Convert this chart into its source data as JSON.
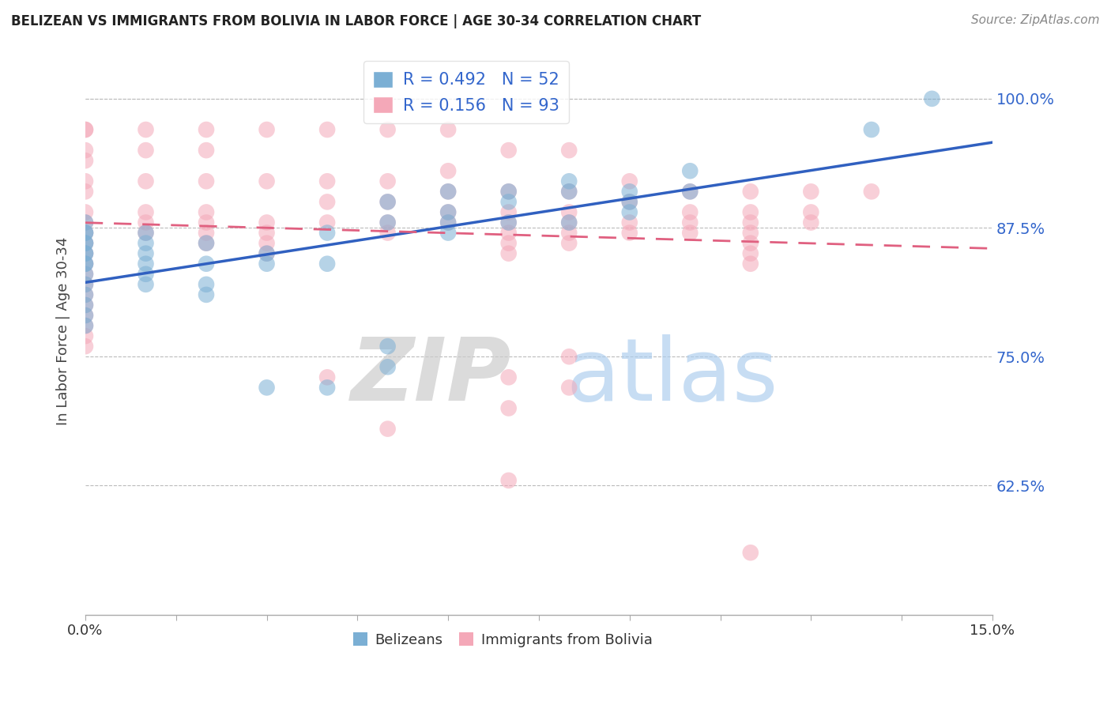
{
  "title": "BELIZEAN VS IMMIGRANTS FROM BOLIVIA IN LABOR FORCE | AGE 30-34 CORRELATION CHART",
  "source": "Source: ZipAtlas.com",
  "ylabel": "In Labor Force | Age 30-34",
  "xlim": [
    0.0,
    0.15
  ],
  "ylim": [
    0.5,
    1.05
  ],
  "yticks": [
    0.625,
    0.75,
    0.875,
    1.0
  ],
  "yticklabels": [
    "62.5%",
    "75.0%",
    "87.5%",
    "100.0%"
  ],
  "xticks": [
    0.0,
    0.015,
    0.03,
    0.045,
    0.06,
    0.075,
    0.09,
    0.105,
    0.12,
    0.135,
    0.15
  ],
  "xticklabels": [
    "0.0%",
    "",
    "",
    "",
    "",
    "",
    "",
    "",
    "",
    "",
    "15.0%"
  ],
  "blue_R": 0.492,
  "blue_N": 52,
  "pink_R": 0.156,
  "pink_N": 93,
  "blue_color": "#7BAFD4",
  "pink_color": "#F4A8B8",
  "blue_line_color": "#3060C0",
  "pink_line_color": "#E06080",
  "blue_scatter_x": [
    0.0,
    0.0,
    0.0,
    0.0,
    0.0,
    0.0,
    0.0,
    0.0,
    0.0,
    0.0,
    0.0,
    0.0,
    0.0,
    0.0,
    0.0,
    0.01,
    0.01,
    0.01,
    0.01,
    0.01,
    0.01,
    0.02,
    0.02,
    0.02,
    0.02,
    0.03,
    0.03,
    0.03,
    0.04,
    0.04,
    0.04,
    0.05,
    0.05,
    0.05,
    0.05,
    0.06,
    0.06,
    0.06,
    0.06,
    0.07,
    0.07,
    0.07,
    0.08,
    0.08,
    0.08,
    0.09,
    0.09,
    0.09,
    0.1,
    0.1,
    0.13,
    0.14
  ],
  "blue_scatter_y": [
    0.88,
    0.87,
    0.87,
    0.86,
    0.86,
    0.85,
    0.85,
    0.84,
    0.84,
    0.83,
    0.82,
    0.81,
    0.8,
    0.79,
    0.78,
    0.87,
    0.86,
    0.85,
    0.84,
    0.83,
    0.82,
    0.86,
    0.84,
    0.82,
    0.81,
    0.85,
    0.84,
    0.72,
    0.87,
    0.84,
    0.72,
    0.9,
    0.88,
    0.76,
    0.74,
    0.91,
    0.89,
    0.88,
    0.87,
    0.91,
    0.9,
    0.88,
    0.92,
    0.91,
    0.88,
    0.91,
    0.9,
    0.89,
    0.93,
    0.91,
    0.97,
    1.0
  ],
  "pink_scatter_x": [
    0.0,
    0.0,
    0.0,
    0.0,
    0.0,
    0.0,
    0.0,
    0.0,
    0.0,
    0.0,
    0.0,
    0.0,
    0.0,
    0.0,
    0.0,
    0.0,
    0.0,
    0.0,
    0.0,
    0.0,
    0.01,
    0.01,
    0.01,
    0.01,
    0.01,
    0.01,
    0.02,
    0.02,
    0.02,
    0.02,
    0.02,
    0.02,
    0.02,
    0.03,
    0.03,
    0.03,
    0.03,
    0.03,
    0.03,
    0.04,
    0.04,
    0.04,
    0.04,
    0.04,
    0.05,
    0.05,
    0.05,
    0.05,
    0.05,
    0.05,
    0.06,
    0.06,
    0.06,
    0.06,
    0.06,
    0.07,
    0.07,
    0.07,
    0.07,
    0.07,
    0.07,
    0.07,
    0.07,
    0.07,
    0.07,
    0.08,
    0.08,
    0.08,
    0.08,
    0.08,
    0.08,
    0.08,
    0.08,
    0.09,
    0.09,
    0.09,
    0.09,
    0.1,
    0.1,
    0.1,
    0.1,
    0.11,
    0.11,
    0.11,
    0.11,
    0.11,
    0.11,
    0.11,
    0.11,
    0.12,
    0.12,
    0.12,
    0.13
  ],
  "pink_scatter_y": [
    0.97,
    0.97,
    0.95,
    0.94,
    0.92,
    0.91,
    0.89,
    0.88,
    0.87,
    0.86,
    0.85,
    0.84,
    0.83,
    0.82,
    0.81,
    0.8,
    0.79,
    0.78,
    0.77,
    0.76,
    0.97,
    0.95,
    0.92,
    0.89,
    0.88,
    0.87,
    0.97,
    0.95,
    0.92,
    0.89,
    0.88,
    0.87,
    0.86,
    0.97,
    0.92,
    0.88,
    0.87,
    0.86,
    0.85,
    0.97,
    0.92,
    0.9,
    0.88,
    0.73,
    0.97,
    0.92,
    0.9,
    0.88,
    0.87,
    0.68,
    0.97,
    0.93,
    0.91,
    0.89,
    0.88,
    0.95,
    0.91,
    0.89,
    0.88,
    0.87,
    0.86,
    0.85,
    0.73,
    0.7,
    0.63,
    0.95,
    0.91,
    0.89,
    0.88,
    0.87,
    0.86,
    0.75,
    0.72,
    0.92,
    0.9,
    0.88,
    0.87,
    0.91,
    0.89,
    0.88,
    0.87,
    0.91,
    0.89,
    0.88,
    0.87,
    0.86,
    0.85,
    0.84,
    0.56,
    0.91,
    0.89,
    0.88,
    0.91
  ],
  "background_color": "#FFFFFF",
  "grid_color": "#BBBBBB",
  "legend_label_color": "#3366CC",
  "ylabel_color": "#444444",
  "title_color": "#222222",
  "source_color": "#888888",
  "bottom_legend_labels": [
    "Belizeans",
    "Immigrants from Bolivia"
  ]
}
